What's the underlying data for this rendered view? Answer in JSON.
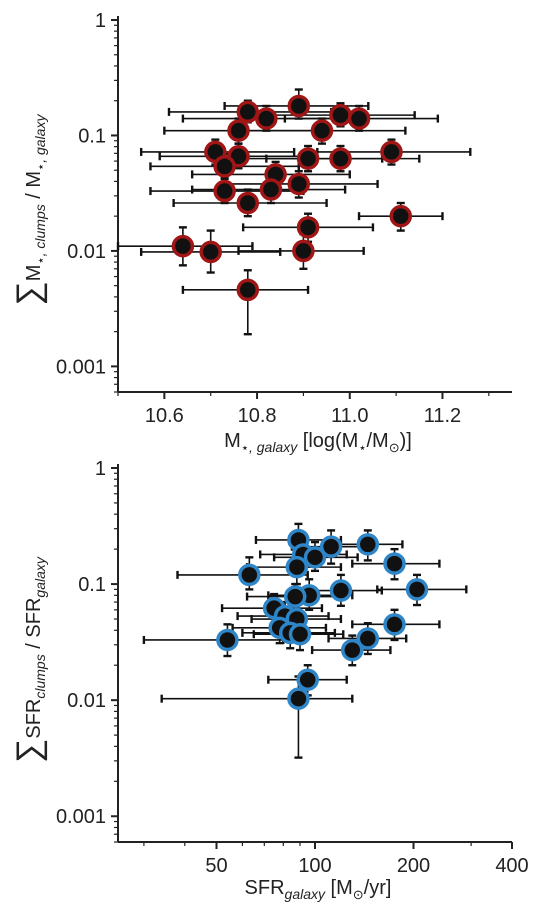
{
  "chart_data": [
    {
      "type": "scatter",
      "title": "",
      "xlabel": {
        "main": "M",
        "star": "⋆",
        "sub": ", galaxy",
        "unit_open": " [log(M",
        "unit_star": "⋆",
        "unit_mid": "/M",
        "sun": "⊙",
        "unit_close": ")]"
      },
      "ylabel": {
        "sum": "∑",
        "main": "M",
        "star": "⋆",
        "sub1": ", clumps",
        "mid": " / M",
        "star2": "⋆",
        "sub2": ", galaxy"
      },
      "x_scale": "linear",
      "y_scale": "log",
      "xlim": [
        10.5,
        11.35
      ],
      "ylim": [
        0.0006,
        1
      ],
      "x_ticks": [
        10.6,
        10.8,
        11.0,
        11.2
      ],
      "x_tick_labels": [
        "10.6",
        "10.8",
        "11.0",
        "11.2"
      ],
      "y_ticks": [
        0.001,
        0.01,
        0.1,
        1
      ],
      "y_tick_labels": [
        "0.001",
        "0.01",
        "0.1",
        "1"
      ],
      "marker_fill": "#111111",
      "marker_edge": "#a01515",
      "points": [
        {
          "x": 10.78,
          "y": 0.16,
          "xlo": 10.61,
          "xhi": 10.96,
          "ylo": 0.13,
          "yhi": 0.2
        },
        {
          "x": 10.89,
          "y": 0.18,
          "xlo": 10.73,
          "xhi": 11.04,
          "ylo": 0.14,
          "yhi": 0.25
        },
        {
          "x": 10.82,
          "y": 0.14,
          "xlo": 10.64,
          "xhi": 10.99,
          "ylo": 0.11,
          "yhi": 0.18
        },
        {
          "x": 10.98,
          "y": 0.15,
          "xlo": 10.79,
          "xhi": 11.14,
          "ylo": 0.12,
          "yhi": 0.19
        },
        {
          "x": 11.02,
          "y": 0.14,
          "xlo": 10.86,
          "xhi": 11.19,
          "ylo": 0.11,
          "yhi": 0.18
        },
        {
          "x": 10.76,
          "y": 0.11,
          "xlo": 10.6,
          "xhi": 10.93,
          "ylo": 0.085,
          "yhi": 0.14
        },
        {
          "x": 10.94,
          "y": 0.11,
          "xlo": 10.77,
          "xhi": 11.12,
          "ylo": 0.085,
          "yhi": 0.14
        },
        {
          "x": 10.71,
          "y": 0.072,
          "xlo": 10.55,
          "xhi": 10.88,
          "ylo": 0.056,
          "yhi": 0.092
        },
        {
          "x": 10.76,
          "y": 0.066,
          "xlo": 10.59,
          "xhi": 10.92,
          "ylo": 0.052,
          "yhi": 0.085
        },
        {
          "x": 10.73,
          "y": 0.054,
          "xlo": 10.57,
          "xhi": 10.89,
          "ylo": 0.042,
          "yhi": 0.069
        },
        {
          "x": 10.91,
          "y": 0.063,
          "xlo": 10.73,
          "xhi": 11.07,
          "ylo": 0.049,
          "yhi": 0.081
        },
        {
          "x": 10.98,
          "y": 0.063,
          "xlo": 10.82,
          "xhi": 11.15,
          "ylo": 0.049,
          "yhi": 0.081
        },
        {
          "x": 11.09,
          "y": 0.072,
          "xlo": 10.93,
          "xhi": 11.26,
          "ylo": 0.056,
          "yhi": 0.092
        },
        {
          "x": 10.84,
          "y": 0.046,
          "xlo": 10.66,
          "xhi": 11.0,
          "ylo": 0.036,
          "yhi": 0.059
        },
        {
          "x": 10.83,
          "y": 0.034,
          "xlo": 10.66,
          "xhi": 10.99,
          "ylo": 0.026,
          "yhi": 0.044
        },
        {
          "x": 10.89,
          "y": 0.038,
          "xlo": 10.73,
          "xhi": 11.06,
          "ylo": 0.029,
          "yhi": 0.049
        },
        {
          "x": 10.73,
          "y": 0.033,
          "xlo": 10.57,
          "xhi": 10.9,
          "ylo": 0.026,
          "yhi": 0.043
        },
        {
          "x": 10.78,
          "y": 0.026,
          "xlo": 10.62,
          "xhi": 10.95,
          "ylo": 0.02,
          "yhi": 0.034
        },
        {
          "x": 10.91,
          "y": 0.016,
          "xlo": 10.77,
          "xhi": 11.05,
          "ylo": 0.012,
          "yhi": 0.021
        },
        {
          "x": 11.11,
          "y": 0.02,
          "xlo": 11.02,
          "xhi": 11.2,
          "ylo": 0.015,
          "yhi": 0.026
        },
        {
          "x": 10.64,
          "y": 0.011,
          "xlo": 10.5,
          "xhi": 10.79,
          "ylo": 0.0075,
          "yhi": 0.016
        },
        {
          "x": 10.7,
          "y": 0.0098,
          "xlo": 10.55,
          "xhi": 10.85,
          "ylo": 0.0065,
          "yhi": 0.015
        },
        {
          "x": 10.9,
          "y": 0.01,
          "xlo": 10.76,
          "xhi": 11.03,
          "ylo": 0.007,
          "yhi": 0.014
        },
        {
          "x": 10.78,
          "y": 0.0046,
          "xlo": 10.64,
          "xhi": 10.91,
          "ylo": 0.0019,
          "yhi": 0.0068
        }
      ]
    },
    {
      "type": "scatter",
      "title": "",
      "xlabel": {
        "main": "SFR",
        "sub": "galaxy",
        "unit_open": " [M",
        "sun": "⊙",
        "unit_close": "/yr]"
      },
      "ylabel": {
        "sum": "∑",
        "main": "SFR",
        "sub1": "clumps",
        "mid": " / SFR",
        "sub2": "galaxy"
      },
      "x_scale": "log",
      "y_scale": "log",
      "xlim": [
        25,
        400
      ],
      "ylim": [
        0.0006,
        1
      ],
      "x_ticks": [
        50,
        100,
        200,
        400
      ],
      "x_tick_labels": [
        "50",
        "100",
        "200",
        "400"
      ],
      "y_ticks": [
        0.001,
        0.01,
        0.1,
        1
      ],
      "y_tick_labels": [
        "0.001",
        "0.01",
        "0.1",
        "1"
      ],
      "marker_fill": "#111111",
      "marker_edge": "#2e86c8",
      "points": [
        {
          "x": 89,
          "y": 0.24,
          "xlo": 66,
          "xhi": 120,
          "ylo": 0.17,
          "yhi": 0.33
        },
        {
          "x": 112,
          "y": 0.21,
          "xlo": 85,
          "xhi": 150,
          "ylo": 0.15,
          "yhi": 0.29
        },
        {
          "x": 145,
          "y": 0.22,
          "xlo": 112,
          "xhi": 185,
          "ylo": 0.16,
          "yhi": 0.29
        },
        {
          "x": 92,
          "y": 0.18,
          "xlo": 68,
          "xhi": 125,
          "ylo": 0.13,
          "yhi": 0.24
        },
        {
          "x": 100,
          "y": 0.17,
          "xlo": 75,
          "xhi": 135,
          "ylo": 0.13,
          "yhi": 0.23
        },
        {
          "x": 88,
          "y": 0.14,
          "xlo": 62,
          "xhi": 120,
          "ylo": 0.1,
          "yhi": 0.18
        },
        {
          "x": 175,
          "y": 0.15,
          "xlo": 130,
          "xhi": 240,
          "ylo": 0.11,
          "yhi": 0.2
        },
        {
          "x": 63,
          "y": 0.12,
          "xlo": 38,
          "xhi": 95,
          "ylo": 0.09,
          "yhi": 0.17
        },
        {
          "x": 120,
          "y": 0.088,
          "xlo": 90,
          "xhi": 160,
          "ylo": 0.065,
          "yhi": 0.12
        },
        {
          "x": 205,
          "y": 0.09,
          "xlo": 155,
          "xhi": 290,
          "ylo": 0.066,
          "yhi": 0.12
        },
        {
          "x": 96,
          "y": 0.08,
          "xlo": 72,
          "xhi": 130,
          "ylo": 0.06,
          "yhi": 0.11
        },
        {
          "x": 87,
          "y": 0.078,
          "xlo": 62,
          "xhi": 118,
          "ylo": 0.058,
          "yhi": 0.1
        },
        {
          "x": 75,
          "y": 0.062,
          "xlo": 52,
          "xhi": 105,
          "ylo": 0.046,
          "yhi": 0.082
        },
        {
          "x": 81,
          "y": 0.053,
          "xlo": 58,
          "xhi": 110,
          "ylo": 0.04,
          "yhi": 0.07
        },
        {
          "x": 88,
          "y": 0.05,
          "xlo": 64,
          "xhi": 120,
          "ylo": 0.037,
          "yhi": 0.067
        },
        {
          "x": 78,
          "y": 0.042,
          "xlo": 56,
          "xhi": 108,
          "ylo": 0.031,
          "yhi": 0.056
        },
        {
          "x": 84,
          "y": 0.038,
          "xlo": 60,
          "xhi": 115,
          "ylo": 0.028,
          "yhi": 0.052
        },
        {
          "x": 90,
          "y": 0.037,
          "xlo": 65,
          "xhi": 122,
          "ylo": 0.027,
          "yhi": 0.05
        },
        {
          "x": 54,
          "y": 0.033,
          "xlo": 30,
          "xhi": 80,
          "ylo": 0.024,
          "yhi": 0.045
        },
        {
          "x": 175,
          "y": 0.045,
          "xlo": 130,
          "xhi": 240,
          "ylo": 0.033,
          "yhi": 0.06
        },
        {
          "x": 145,
          "y": 0.034,
          "xlo": 110,
          "xhi": 190,
          "ylo": 0.025,
          "yhi": 0.046
        },
        {
          "x": 130,
          "y": 0.027,
          "xlo": 98,
          "xhi": 170,
          "ylo": 0.02,
          "yhi": 0.036
        },
        {
          "x": 95,
          "y": 0.015,
          "xlo": 72,
          "xhi": 125,
          "ylo": 0.011,
          "yhi": 0.02
        },
        {
          "x": 89,
          "y": 0.0103,
          "xlo": 34,
          "xhi": 130,
          "ylo": 0.0032,
          "yhi": 0.016
        }
      ]
    }
  ]
}
